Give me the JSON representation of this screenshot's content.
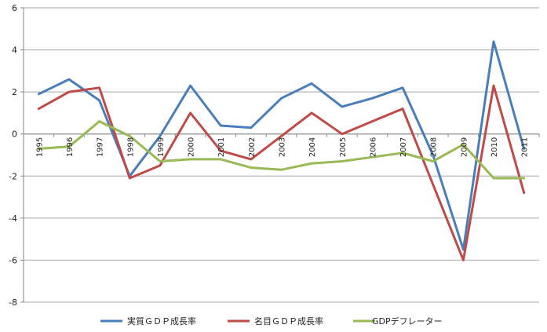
{
  "chart_data": {
    "type": "line",
    "title": "",
    "xlabel": "",
    "ylabel": "",
    "categories": [
      "1995",
      "1996",
      "1997",
      "1998",
      "1999",
      "2000",
      "2001",
      "2002",
      "2003",
      "2004",
      "2005",
      "2006",
      "2007",
      "2008",
      "2009",
      "2010",
      "2011"
    ],
    "ylim": [
      -8,
      6
    ],
    "yticks": [
      "6",
      "4",
      "2",
      "0",
      "-2",
      "-4",
      "-6",
      "-8"
    ],
    "grid": "horizontal",
    "legend": "bottom",
    "series": [
      {
        "name": "実質ＧＤＰ成長率",
        "color": "#4a7ebb",
        "values": [
          1.9,
          2.6,
          1.6,
          -2.0,
          -0.1,
          2.3,
          0.4,
          0.3,
          1.7,
          2.4,
          1.3,
          1.7,
          2.2,
          -1.0,
          -5.5,
          4.4,
          -0.7
        ]
      },
      {
        "name": "名目ＧＤＰ成長率",
        "color": "#be4b48",
        "values": [
          1.2,
          2.0,
          2.2,
          -2.1,
          -1.5,
          1.0,
          -0.8,
          -1.2,
          -0.1,
          1.0,
          0.0,
          0.6,
          1.2,
          -2.4,
          -6.0,
          2.3,
          -2.8
        ]
      },
      {
        "name": "GDPデフレーター",
        "color": "#98b954",
        "values": [
          -0.7,
          -0.6,
          0.6,
          -0.1,
          -1.3,
          -1.2,
          -1.2,
          -1.6,
          -1.7,
          -1.4,
          -1.3,
          -1.1,
          -0.9,
          -1.3,
          -0.5,
          -2.1,
          -2.1
        ]
      }
    ]
  }
}
